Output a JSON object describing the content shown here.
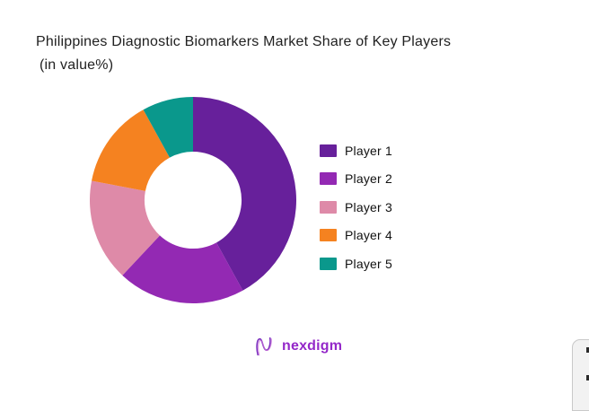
{
  "title": {
    "line1": "Philippines Diagnostic Biomarkers Market Share of Key Players",
    "line2": "(in value%)"
  },
  "chart_data": {
    "type": "pie",
    "subtype": "donut",
    "title": "Philippines Diagnostic Biomarkers Market Share of Key Players (in value%)",
    "unit": "value %",
    "categories": [
      "Player 1",
      "Player 2",
      "Player 3",
      "Player 4",
      "Player 5"
    ],
    "values": [
      42,
      20,
      16,
      14,
      8
    ],
    "colors": [
      "#67209B",
      "#9329B3",
      "#DE8AA8",
      "#F58220",
      "#0A988C"
    ],
    "start_angle_deg": 0,
    "direction": "clockwise",
    "inner_radius_ratio": 0.47,
    "legend_position": "right",
    "data_labels": false
  },
  "branding": {
    "logo_text": "nexdigm"
  },
  "colors": {
    "background": "#ffffff",
    "title_text": "#212121",
    "legend_text": "#111111",
    "brand_purple": "#9428C9",
    "card_bg": "#f2f2f2",
    "card_border": "#c9c9c9"
  }
}
